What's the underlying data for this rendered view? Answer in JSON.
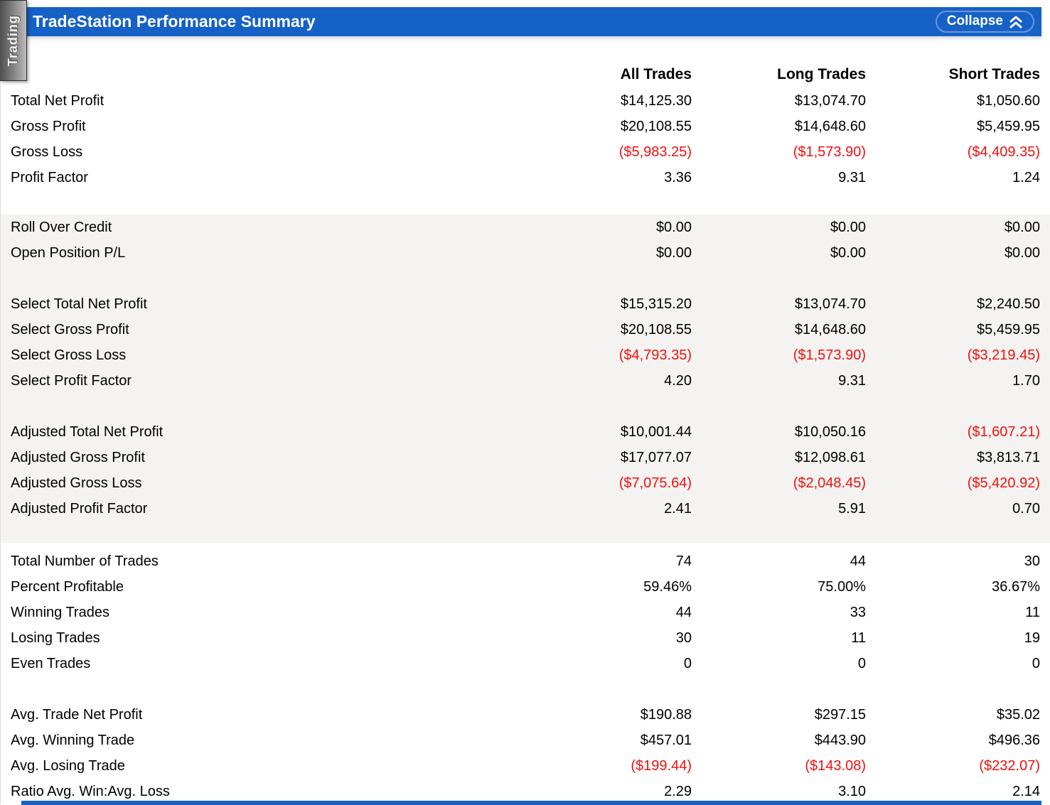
{
  "panel": {
    "tab_label": "Trading",
    "title": "TradeStation Performance Summary",
    "collapse_label": "Collapse"
  },
  "colors": {
    "header_blue": "#1561c6",
    "negative_red": "#f01010",
    "band_gray": "#f4f3f1"
  },
  "table": {
    "columns": [
      "All Trades",
      "Long Trades",
      "Short Trades"
    ],
    "sections": [
      {
        "band": "white",
        "rows": [
          {
            "label": "Total Net Profit",
            "values": [
              "$14,125.30",
              "$13,074.70",
              "$1,050.60"
            ]
          },
          {
            "label": "Gross Profit",
            "values": [
              "$20,108.55",
              "$14,648.60",
              "$5,459.95"
            ]
          },
          {
            "label": "Gross Loss",
            "values": [
              "($5,983.25)",
              "($1,573.90)",
              "($4,409.35)"
            ]
          },
          {
            "label": "Profit Factor",
            "values": [
              "3.36",
              "9.31",
              "1.24"
            ]
          }
        ]
      },
      {
        "band": "gray",
        "rows": [
          {
            "label": "Roll Over Credit",
            "values": [
              "$0.00",
              "$0.00",
              "$0.00"
            ]
          },
          {
            "label": "Open Position P/L",
            "values": [
              "$0.00",
              "$0.00",
              "$0.00"
            ]
          }
        ]
      },
      {
        "band": "gray",
        "rows": [
          {
            "label": "Select Total Net Profit",
            "values": [
              "$15,315.20",
              "$13,074.70",
              "$2,240.50"
            ]
          },
          {
            "label": "Select Gross Profit",
            "values": [
              "$20,108.55",
              "$14,648.60",
              "$5,459.95"
            ]
          },
          {
            "label": "Select Gross Loss",
            "values": [
              "($4,793.35)",
              "($1,573.90)",
              "($3,219.45)"
            ]
          },
          {
            "label": "Select Profit Factor",
            "values": [
              "4.20",
              "9.31",
              "1.70"
            ]
          }
        ]
      },
      {
        "band": "gray",
        "rows": [
          {
            "label": "Adjusted Total Net Profit",
            "values": [
              "$10,001.44",
              "$10,050.16",
              "($1,607.21)"
            ]
          },
          {
            "label": "Adjusted Gross Profit",
            "values": [
              "$17,077.07",
              "$12,098.61",
              "$3,813.71"
            ]
          },
          {
            "label": "Adjusted Gross Loss",
            "values": [
              "($7,075.64)",
              "($2,048.45)",
              "($5,420.92)"
            ]
          },
          {
            "label": "Adjusted Profit Factor",
            "values": [
              "2.41",
              "5.91",
              "0.70"
            ]
          }
        ]
      },
      {
        "band": "white",
        "rows": [
          {
            "label": "Total Number of Trades",
            "values": [
              "74",
              "44",
              "30"
            ]
          },
          {
            "label": "Percent Profitable",
            "values": [
              "59.46%",
              "75.00%",
              "36.67%"
            ]
          },
          {
            "label": "Winning Trades",
            "values": [
              "44",
              "33",
              "11"
            ]
          },
          {
            "label": "Losing Trades",
            "values": [
              "30",
              "11",
              "19"
            ]
          },
          {
            "label": "Even Trades",
            "values": [
              "0",
              "0",
              "0"
            ]
          }
        ]
      },
      {
        "band": "white",
        "rows": [
          {
            "label": "Avg. Trade Net Profit",
            "values": [
              "$190.88",
              "$297.15",
              "$35.02"
            ]
          },
          {
            "label": "Avg. Winning Trade",
            "values": [
              "$457.01",
              "$443.90",
              "$496.36"
            ]
          },
          {
            "label": "Avg. Losing Trade",
            "values": [
              "($199.44)",
              "($143.08)",
              "($232.07)"
            ]
          },
          {
            "label": "Ratio Avg. Win:Avg. Loss",
            "values": [
              "2.29",
              "3.10",
              "2.14"
            ]
          }
        ]
      }
    ]
  }
}
